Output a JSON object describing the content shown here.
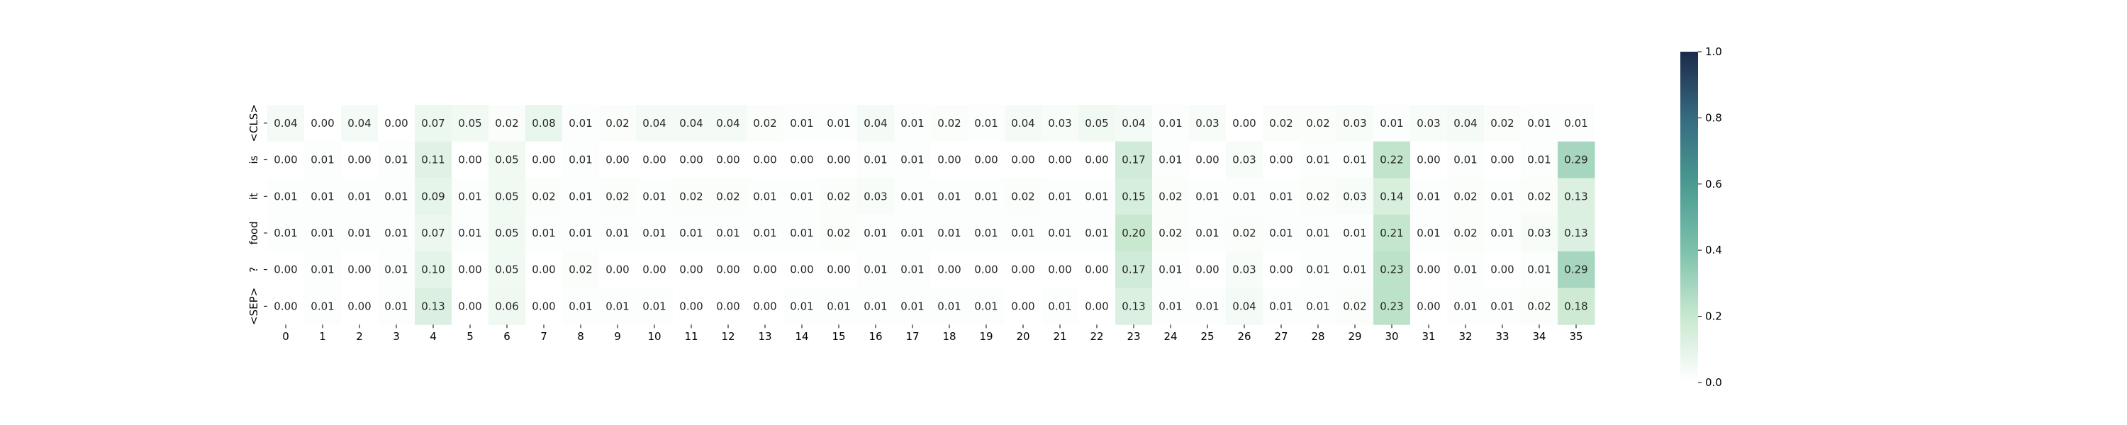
{
  "chart_data": {
    "type": "heatmap",
    "x_labels": [
      "0",
      "1",
      "2",
      "3",
      "4",
      "5",
      "6",
      "7",
      "8",
      "9",
      "10",
      "11",
      "12",
      "13",
      "14",
      "15",
      "16",
      "17",
      "18",
      "19",
      "20",
      "21",
      "22",
      "23",
      "24",
      "25",
      "26",
      "27",
      "28",
      "29",
      "30",
      "31",
      "32",
      "33",
      "34",
      "35"
    ],
    "y_labels": [
      "<CLS>",
      "is",
      "it",
      "food",
      "?",
      "<SEP>"
    ],
    "values": [
      [
        0.04,
        0.0,
        0.04,
        0.0,
        0.07,
        0.05,
        0.02,
        0.08,
        0.01,
        0.02,
        0.04,
        0.04,
        0.04,
        0.02,
        0.01,
        0.01,
        0.04,
        0.01,
        0.02,
        0.01,
        0.04,
        0.03,
        0.05,
        0.04,
        0.01,
        0.03,
        0.0,
        0.02,
        0.02,
        0.03,
        0.01,
        0.03,
        0.04,
        0.02,
        0.01,
        0.01
      ],
      [
        0.0,
        0.01,
        0.0,
        0.01,
        0.11,
        0.0,
        0.05,
        0.0,
        0.01,
        0.0,
        0.0,
        0.0,
        0.0,
        0.0,
        0.0,
        0.0,
        0.01,
        0.01,
        0.0,
        0.0,
        0.0,
        0.0,
        0.0,
        0.17,
        0.01,
        0.0,
        0.03,
        0.0,
        0.01,
        0.01,
        0.22,
        0.0,
        0.01,
        0.0,
        0.01,
        0.29
      ],
      [
        0.01,
        0.01,
        0.01,
        0.01,
        0.09,
        0.01,
        0.05,
        0.02,
        0.01,
        0.02,
        0.01,
        0.02,
        0.02,
        0.01,
        0.01,
        0.02,
        0.03,
        0.01,
        0.01,
        0.01,
        0.02,
        0.01,
        0.01,
        0.15,
        0.02,
        0.01,
        0.01,
        0.01,
        0.02,
        0.03,
        0.14,
        0.01,
        0.02,
        0.01,
        0.02,
        0.13
      ],
      [
        0.01,
        0.01,
        0.01,
        0.01,
        0.07,
        0.01,
        0.05,
        0.01,
        0.01,
        0.01,
        0.01,
        0.01,
        0.01,
        0.01,
        0.01,
        0.02,
        0.01,
        0.01,
        0.01,
        0.01,
        0.01,
        0.01,
        0.01,
        0.2,
        0.02,
        0.01,
        0.02,
        0.01,
        0.01,
        0.01,
        0.21,
        0.01,
        0.02,
        0.01,
        0.03,
        0.13
      ],
      [
        0.0,
        0.01,
        0.0,
        0.01,
        0.1,
        0.0,
        0.05,
        0.0,
        0.02,
        0.0,
        0.0,
        0.0,
        0.0,
        0.0,
        0.0,
        0.0,
        0.01,
        0.01,
        0.0,
        0.0,
        0.0,
        0.0,
        0.0,
        0.17,
        0.01,
        0.0,
        0.03,
        0.0,
        0.01,
        0.01,
        0.23,
        0.0,
        0.01,
        0.0,
        0.01,
        0.29
      ],
      [
        0.0,
        0.01,
        0.0,
        0.01,
        0.13,
        0.0,
        0.06,
        0.0,
        0.01,
        0.01,
        0.01,
        0.0,
        0.0,
        0.0,
        0.01,
        0.01,
        0.01,
        0.01,
        0.01,
        0.01,
        0.0,
        0.01,
        0.0,
        0.13,
        0.01,
        0.01,
        0.04,
        0.01,
        0.01,
        0.02,
        0.23,
        0.0,
        0.01,
        0.01,
        0.02,
        0.18
      ]
    ],
    "value_format": "0.00",
    "colorbar": {
      "min": 0.0,
      "max": 1.0,
      "ticks": [
        "0.0",
        "0.2",
        "0.4",
        "0.6",
        "0.8",
        "1.0"
      ],
      "colors": [
        "#ffffff",
        "#c8e8d0",
        "#7cc1ab",
        "#4a9a92",
        "#356b80",
        "#1b2a4a"
      ]
    },
    "title": "",
    "xlabel": "",
    "ylabel": ""
  }
}
